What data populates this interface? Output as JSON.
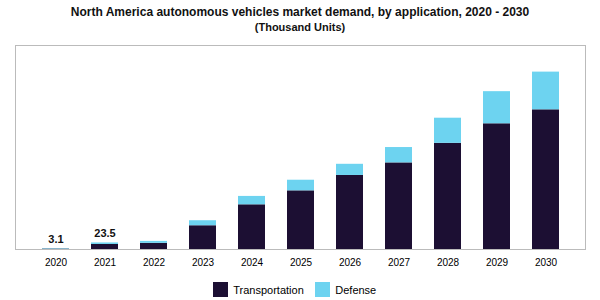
{
  "chart_data": {
    "type": "bar",
    "stacked": true,
    "title": "North America autonomous vehicles market demand, by application, 2020 - 2030",
    "subtitle": "(Thousand Units)",
    "categories": [
      "2020",
      "2021",
      "2022",
      "2023",
      "2024",
      "2025",
      "2026",
      "2027",
      "2028",
      "2029",
      "2030"
    ],
    "series": [
      {
        "name": "Transportation",
        "color": "#1c0f33",
        "values": [
          1.5,
          18.0,
          22.0,
          85.0,
          160.0,
          210.0,
          265.0,
          310.0,
          380.0,
          450.0,
          500.0
        ]
      },
      {
        "name": "Defense",
        "color": "#6dd3f0",
        "values": [
          1.6,
          5.5,
          7.0,
          18.0,
          30.0,
          38.0,
          40.0,
          55.0,
          90.0,
          115.0,
          135.0
        ]
      }
    ],
    "annotations": [
      {
        "x": "2020",
        "y": 3.1,
        "text": "3.1"
      },
      {
        "x": "2021",
        "y": 23.5,
        "text": "23.5"
      }
    ],
    "ylim": [
      0,
      730.25
    ],
    "tick_labels": "x",
    "grid": false,
    "legend": "bottom"
  }
}
